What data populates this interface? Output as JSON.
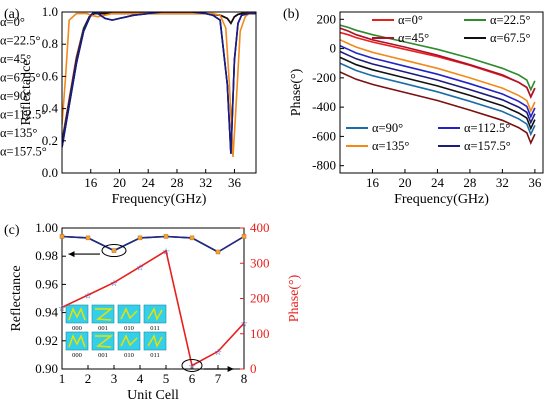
{
  "chart_data": [
    {
      "panel_label": "(a)",
      "type": "line",
      "xlabel": "Frequency(GHz)",
      "ylabel": "Reflectance",
      "xlim": [
        12,
        39
      ],
      "ylim": [
        0.0,
        1.0
      ],
      "x_ticks": [
        "16",
        "20",
        "24",
        "28",
        "32",
        "36"
      ],
      "y_ticks": [
        "0.0",
        "0.2",
        "0.4",
        "0.6",
        "0.8",
        "1.0"
      ],
      "legend_placement": "center-right",
      "series": [
        {
          "name": "α=0°",
          "color": "#e8201c",
          "x": [
            12,
            13,
            14,
            15,
            15.8,
            16.5,
            17.5,
            19,
            21,
            24,
            28,
            32,
            34,
            35,
            35.5,
            36,
            36.5,
            37,
            38,
            39
          ],
          "y": [
            0.2,
            0.46,
            0.72,
            0.9,
            0.97,
            0.99,
            0.99,
            0.99,
            0.99,
            0.99,
            0.99,
            0.99,
            0.98,
            0.96,
            0.93,
            0.97,
            0.985,
            0.99,
            0.99,
            0.99
          ]
        },
        {
          "name": "α=22.5°",
          "color": "#2e8b2e",
          "x": [
            12,
            13,
            14,
            15,
            15.8,
            16.5,
            17.5,
            19,
            21,
            24,
            28,
            32,
            34,
            35,
            35.5,
            36,
            36.5,
            37,
            38,
            39
          ],
          "y": [
            0.19,
            0.45,
            0.71,
            0.9,
            0.97,
            0.99,
            0.99,
            0.99,
            0.99,
            0.99,
            0.99,
            0.99,
            0.98,
            0.96,
            0.93,
            0.97,
            0.985,
            0.99,
            0.99,
            0.99
          ]
        },
        {
          "name": "α=45°",
          "color": "#b0102a",
          "x": [
            12,
            13,
            14,
            15,
            15.8,
            16.5,
            17.5,
            19,
            21,
            24,
            28,
            32,
            34,
            35,
            35.5,
            36,
            36.5,
            37,
            38,
            39
          ],
          "y": [
            0.18,
            0.44,
            0.7,
            0.89,
            0.97,
            0.99,
            0.99,
            0.99,
            0.99,
            0.99,
            0.99,
            0.99,
            0.98,
            0.96,
            0.93,
            0.97,
            0.985,
            0.99,
            0.99,
            0.99
          ]
        },
        {
          "name": "α=67.5°",
          "color": "#111111",
          "x": [
            12,
            13,
            14,
            15,
            15.8,
            16.5,
            17.5,
            19,
            21,
            24,
            28,
            32,
            34,
            35,
            35.5,
            36,
            36.5,
            37,
            38,
            39
          ],
          "y": [
            0.18,
            0.44,
            0.7,
            0.89,
            0.97,
            0.99,
            0.99,
            0.99,
            0.99,
            0.99,
            0.99,
            0.99,
            0.98,
            0.96,
            0.93,
            0.97,
            0.985,
            0.99,
            0.99,
            0.99
          ]
        },
        {
          "name": "α=90°",
          "color": "#1a6ea8",
          "x": [
            12,
            13,
            14,
            15,
            16,
            16.5,
            17,
            18,
            19,
            20,
            22,
            24,
            26,
            28,
            30,
            32,
            33,
            34,
            35,
            35.5,
            36,
            36.5,
            37,
            38,
            39
          ],
          "y": [
            0.16,
            0.42,
            0.68,
            0.88,
            0.98,
            1.0,
            0.99,
            0.96,
            0.95,
            0.96,
            0.98,
            0.99,
            1.0,
            1.0,
            1.0,
            0.99,
            0.98,
            0.95,
            0.55,
            0.12,
            0.7,
            0.93,
            0.98,
            0.99,
            0.99
          ]
        },
        {
          "name": "α=112.5°",
          "color": "#2323c8",
          "x": [
            12,
            13,
            14,
            15,
            16,
            16.5,
            17,
            18,
            19,
            20,
            22,
            24,
            26,
            28,
            30,
            32,
            33,
            34,
            35,
            35.5,
            36,
            36.5,
            37,
            38,
            39
          ],
          "y": [
            0.16,
            0.42,
            0.68,
            0.88,
            0.98,
            1.0,
            0.99,
            0.96,
            0.95,
            0.96,
            0.98,
            0.99,
            1.0,
            1.0,
            1.0,
            0.99,
            0.98,
            0.95,
            0.55,
            0.12,
            0.7,
            0.93,
            0.98,
            0.99,
            0.99
          ]
        },
        {
          "name": "α=135°",
          "color": "#f28a1a",
          "x": [
            12,
            12.5,
            13,
            14,
            15,
            15.5,
            16,
            17,
            18,
            19,
            20,
            22,
            24,
            26,
            28,
            30,
            32,
            33,
            34,
            34.8,
            35.3,
            35.8,
            36.2,
            36.8,
            37.5,
            38,
            39
          ],
          "y": [
            0.3,
            0.6,
            0.95,
            0.99,
            0.99,
            0.99,
            0.98,
            0.97,
            0.98,
            0.99,
            0.99,
            0.99,
            0.99,
            0.99,
            0.99,
            0.99,
            0.99,
            0.99,
            0.98,
            0.9,
            0.55,
            0.1,
            0.4,
            0.88,
            0.97,
            0.99,
            0.99
          ]
        },
        {
          "name": "α=157.5°",
          "color": "#1c1c7a",
          "x": [
            12,
            13,
            14,
            15,
            16,
            16.5,
            17,
            18,
            19,
            20,
            22,
            24,
            26,
            28,
            30,
            32,
            33,
            34,
            35,
            35.5,
            36,
            36.5,
            37,
            38,
            39
          ],
          "y": [
            0.16,
            0.42,
            0.68,
            0.88,
            0.98,
            1.0,
            0.99,
            0.96,
            0.95,
            0.96,
            0.98,
            0.99,
            1.0,
            1.0,
            1.0,
            0.99,
            0.98,
            0.95,
            0.55,
            0.12,
            0.7,
            0.93,
            0.98,
            0.99,
            0.99
          ]
        }
      ]
    },
    {
      "panel_label": "(b)",
      "type": "line",
      "xlabel": "Frequency(GHz)",
      "ylabel": "Phase(°)",
      "xlim": [
        12,
        37
      ],
      "ylim": [
        -850,
        250
      ],
      "x_ticks": [
        "16",
        "20",
        "24",
        "28",
        "32",
        "36"
      ],
      "y_ticks": [
        "200",
        "0",
        "-200",
        "-400",
        "-600",
        "-800"
      ],
      "legend_placement": "top and bottom",
      "series": [
        {
          "name": "α=0°",
          "color": "#e8201c",
          "x": [
            12,
            13,
            14,
            16,
            20,
            24,
            28,
            32,
            34,
            35,
            35.5,
            36
          ],
          "y": [
            110,
            95,
            75,
            45,
            -5,
            -55,
            -115,
            -185,
            -230,
            -265,
            -330,
            -270
          ]
        },
        {
          "name": "α=22.5°",
          "color": "#2e8b2e",
          "x": [
            12,
            13,
            14,
            16,
            20,
            24,
            28,
            32,
            34,
            35,
            35.5,
            36
          ],
          "y": [
            160,
            145,
            125,
            95,
            45,
            -5,
            -65,
            -135,
            -180,
            -215,
            -280,
            -220
          ]
        },
        {
          "name": "α=45°",
          "color": "#b0102a",
          "x": [
            12,
            13,
            14,
            16,
            20,
            24,
            28,
            32,
            34,
            35,
            35.5,
            36
          ],
          "y": [
            140,
            120,
            95,
            60,
            10,
            -45,
            -110,
            -180,
            -230,
            -265,
            -330,
            -270
          ]
        },
        {
          "name": "α=67.5°",
          "color": "#111111",
          "x": [
            12,
            13,
            14,
            16,
            20,
            24,
            28,
            32,
            34,
            35,
            35.5,
            36
          ],
          "y": [
            -60,
            -85,
            -110,
            -145,
            -200,
            -255,
            -320,
            -390,
            -440,
            -475,
            -545,
            -485
          ]
        },
        {
          "name": "α=90°",
          "color": "#1a6ea8",
          "x": [
            12,
            13,
            14,
            16,
            20,
            24,
            28,
            32,
            34,
            35,
            35.5,
            36
          ],
          "y": [
            -100,
            -125,
            -150,
            -185,
            -240,
            -295,
            -360,
            -430,
            -480,
            -515,
            -585,
            -525
          ]
        },
        {
          "name": "α=112.5°",
          "color": "#2323c8",
          "x": [
            12,
            13,
            14,
            16,
            20,
            24,
            28,
            32,
            34,
            35,
            35.5,
            36
          ],
          "y": [
            20,
            -5,
            -30,
            -65,
            -120,
            -175,
            -240,
            -310,
            -360,
            -395,
            -465,
            -405
          ]
        },
        {
          "name": "α=135°",
          "color": "#f28a1a",
          "x": [
            12,
            13,
            14,
            16,
            20,
            24,
            28,
            32,
            34,
            35,
            35.5,
            36
          ],
          "y": [
            60,
            35,
            10,
            -25,
            -80,
            -135,
            -200,
            -270,
            -320,
            -355,
            -425,
            -365
          ]
        },
        {
          "name": "α=157.5°",
          "color": "#1c1c7a",
          "x": [
            12,
            13,
            14,
            16,
            20,
            24,
            28,
            32,
            34,
            35,
            35.5,
            36
          ],
          "y": [
            -20,
            -45,
            -70,
            -105,
            -160,
            -215,
            -280,
            -350,
            -400,
            -435,
            -505,
            -445
          ]
        },
        {
          "name": "",
          "color": "#7a1010",
          "x": [
            12,
            13,
            14,
            16,
            20,
            24,
            28,
            32,
            34,
            35,
            35.5,
            36
          ],
          "y": [
            -160,
            -185,
            -210,
            -245,
            -300,
            -355,
            -420,
            -490,
            -540,
            -575,
            -645,
            -585
          ]
        }
      ]
    },
    {
      "panel_label": "(c)",
      "type": "line",
      "xlabel": "Unit Cell",
      "ylabel": "Reflectance",
      "ylabel_right": "Phase(°)",
      "xlim": [
        1,
        8
      ],
      "ylim": [
        0.9,
        1.0
      ],
      "ylim_right": [
        0,
        400
      ],
      "x_ticks": [
        "1",
        "2",
        "3",
        "4",
        "5",
        "6",
        "7",
        "8"
      ],
      "y_ticks": [
        "0.90",
        "0.92",
        "0.94",
        "0.96",
        "0.98",
        "1.00"
      ],
      "y_ticks_right": [
        "0",
        "100",
        "200",
        "300",
        "400"
      ],
      "series": [
        {
          "axis": "left",
          "color": "#1f2a80",
          "x": [
            1,
            2,
            3,
            4,
            5,
            6,
            7,
            8
          ],
          "y": [
            0.994,
            0.993,
            0.984,
            0.993,
            0.994,
            0.993,
            0.983,
            0.994
          ]
        },
        {
          "axis": "right",
          "color": "#e8201c",
          "x": [
            1,
            2,
            3,
            4,
            5,
            6,
            7,
            8
          ],
          "y": [
            175,
            210,
            245,
            290,
            335,
            10,
            50,
            130
          ]
        }
      ],
      "inset_codes": [
        "000",
        "001",
        "010",
        "011",
        "000",
        "001",
        "010",
        "011"
      ]
    }
  ]
}
